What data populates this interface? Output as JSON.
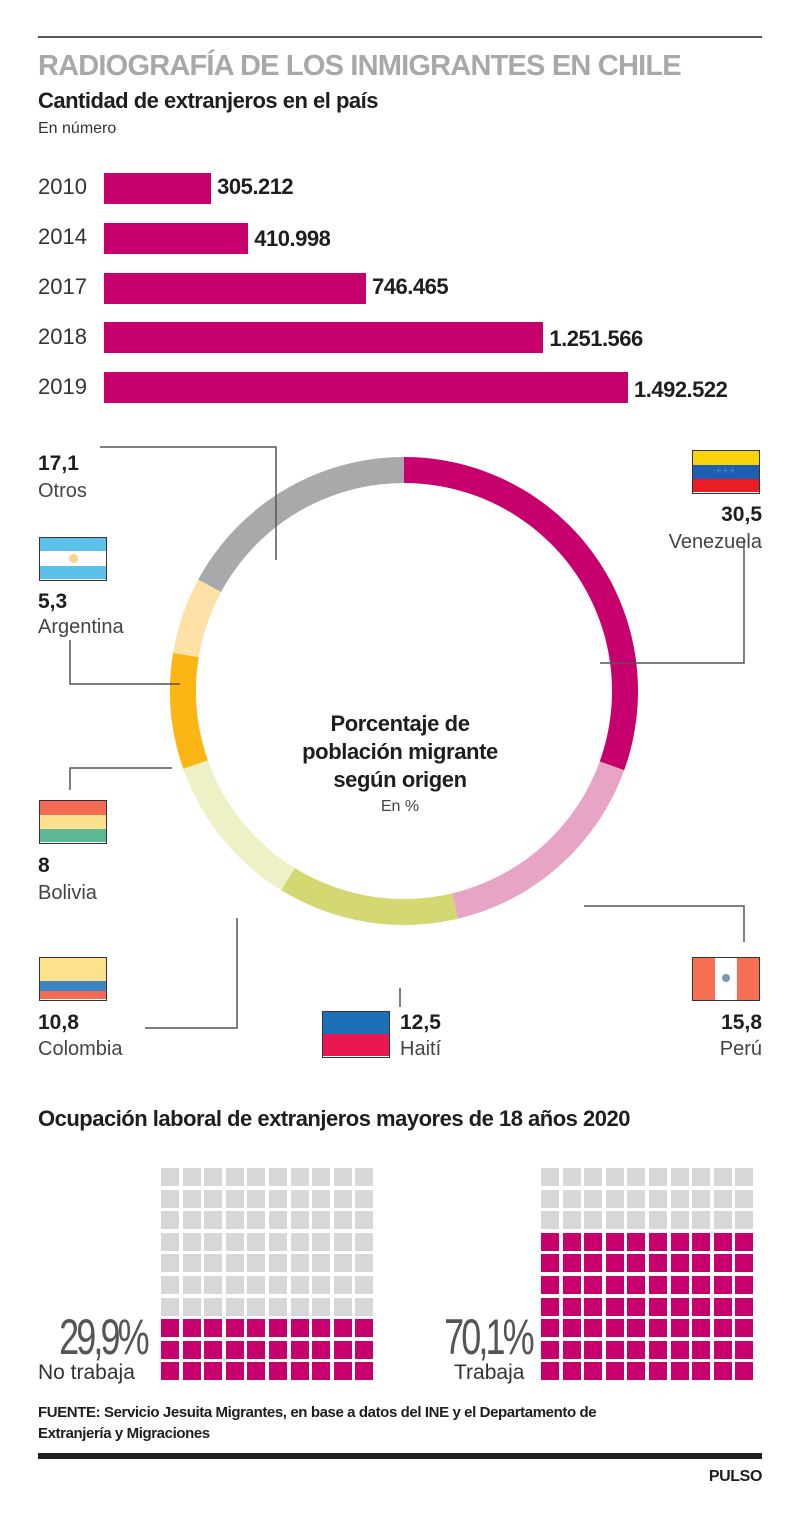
{
  "header": {
    "kicker": "RADIOGRAFÍA DE LOS INMIGRANTES EN CHILE",
    "title": "Cantidad de extranjeros en el país",
    "subtitle": "En número"
  },
  "chart_data": [
    {
      "type": "bar",
      "orientation": "horizontal",
      "title": "Cantidad de extranjeros en el país",
      "subtitle": "En número",
      "categories": [
        "2010",
        "2014",
        "2017",
        "2018",
        "2019"
      ],
      "values": [
        305212,
        410998,
        746465,
        1251566,
        1492522
      ],
      "value_labels": [
        "305.212",
        "410.998",
        "746.465",
        "1.251.566",
        "1.492.522"
      ],
      "color": "#c8006e",
      "xlim": [
        0,
        1492522
      ]
    },
    {
      "type": "pie",
      "variant": "donut",
      "title": "Porcentaje de población migrante según origen",
      "subtitle": "En %",
      "slices": [
        {
          "name": "Venezuela",
          "value": 30.5,
          "label": "30,5",
          "color": "#c8006e"
        },
        {
          "name": "Perú",
          "value": 15.8,
          "label": "15,8",
          "color": "#e8a4c4"
        },
        {
          "name": "Haití",
          "value": 12.5,
          "label": "12,5",
          "color": "#d4d873"
        },
        {
          "name": "Colombia",
          "value": 10.8,
          "label": "10,8",
          "color": "#eef0c6"
        },
        {
          "name": "Bolivia",
          "value": 8,
          "label": "8",
          "color": "#fbb515"
        },
        {
          "name": "Argentina",
          "value": 5.3,
          "label": "5,3",
          "color": "#fde1a6"
        },
        {
          "name": "Otros",
          "value": 17.1,
          "label": "17,1",
          "color": "#a9a9ab"
        }
      ]
    },
    {
      "type": "waffle",
      "title": "Ocupación laboral de extranjeros mayores de 18 años 2020",
      "series": [
        {
          "name": "No trabaja",
          "value": 29.9,
          "label": "29,9%",
          "filled_rows": 3,
          "total_rows": 10
        },
        {
          "name": "Trabaja",
          "value": 70.1,
          "label": "70,1%",
          "filled_rows": 7,
          "total_rows": 10
        }
      ],
      "colors": {
        "filled": "#c8006e",
        "empty": "#d7d7d7"
      }
    }
  ],
  "donut": {
    "title_lines": [
      "Porcentaje de",
      "población migrante",
      "según origen"
    ],
    "subtitle": "En %"
  },
  "employment": {
    "title": "Ocupación laboral de extranjeros mayores de 18 años 2020"
  },
  "footer": {
    "source_lines": [
      "FUENTE: Servicio Jesuita Migrantes, en base a datos del INE y el Departamento de",
      "Extranjería y Migraciones"
    ],
    "brand": "PULSO"
  },
  "colors": {
    "accent": "#c8006e",
    "text": "#1e1e1e",
    "kicker": "#a8a8a8",
    "leader": "#555555"
  }
}
